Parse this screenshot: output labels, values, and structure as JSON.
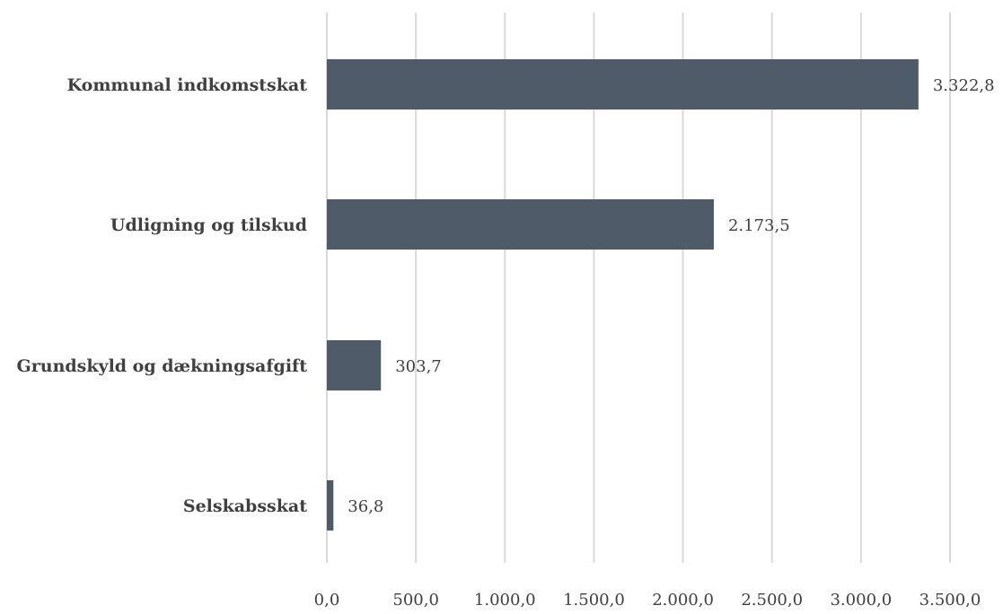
{
  "chart_data": {
    "type": "bar",
    "orientation": "horizontal",
    "title": "",
    "xlabel": "",
    "ylabel": "",
    "categories": [
      "Kommunal indkomstskat",
      "Udligning og tilskud",
      "Grundskyld og dækningsafgift",
      "Selskabsskat"
    ],
    "values": [
      3322.8,
      2173.5,
      303.7,
      36.8
    ],
    "value_labels": [
      "3.322,8",
      "2.173,5",
      "303,7",
      "36,8"
    ],
    "xlim": [
      0,
      3500
    ],
    "xticks": [
      0,
      500,
      1000,
      1500,
      2000,
      2500,
      3000,
      3500
    ],
    "xtick_labels": [
      "0,0",
      "500,0",
      "1.000,0",
      "1.500,0",
      "2.000,0",
      "2.500,0",
      "3.000,0",
      "3.500,0"
    ],
    "grid": true,
    "bar_color": "#4f5b69",
    "grid_color": "#d9d9d9",
    "text_color": "#404040"
  }
}
